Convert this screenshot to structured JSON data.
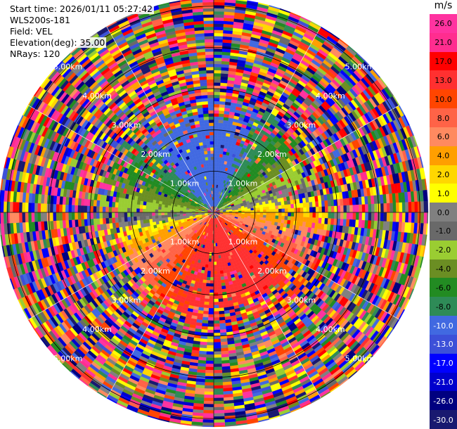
{
  "info": {
    "start_time": "Start time: 2026/01/11 05:27:42",
    "instrument": "WLS200s-181",
    "field": "Field: VEL",
    "elevation": "Elevation(deg): 35.00",
    "nrays": "NRays: 120"
  },
  "colorbar": {
    "unit": "m/s",
    "ticks": [
      "26.0",
      "21.0",
      "17.0",
      "13.0",
      "10.0",
      "8.0",
      "6.0",
      "4.0",
      "2.0",
      "1.0",
      "0.0",
      "-1.0",
      "-2.0",
      "-4.0",
      "-6.0",
      "-8.0",
      "-10.0",
      "-13.0",
      "-17.0",
      "-21.0",
      "-26.0",
      "-30.0"
    ],
    "colors": [
      "#ff33a0",
      "#ff2d8f",
      "#ff0000",
      "#ff3030",
      "#ff4500",
      "#ff6347",
      "#ff8a60",
      "#ff9f00",
      "#ffd700",
      "#ffff00",
      "#808080",
      "#696969",
      "#9acd32",
      "#6b8e23",
      "#228b22",
      "#2e8b57",
      "#4169e1",
      "#3c50d8",
      "#0000ff",
      "#0000cd",
      "#000080",
      "#191970"
    ]
  },
  "chart_data": {
    "type": "heatmap",
    "projection": "polar (PPI)",
    "field": "VEL",
    "units": "m/s",
    "nrays": 120,
    "range_rings_km": [
      1.0,
      2.0,
      3.0,
      4.0,
      5.0
    ],
    "ring_labels": [
      "1.00km",
      "2.00km",
      "3.00km",
      "4.00km",
      "5.00km"
    ],
    "color_scale_min": -30.0,
    "color_scale_max": 26.0,
    "pattern": {
      "near_field_km": [
        0.0,
        2.3
      ],
      "north_sector": "negative velocities (blue)",
      "south_sector": "positive velocities (red/orange)",
      "east_sector": "near zero / slightly positive (yellow, grey)",
      "west_sector": "mixed yellow and green",
      "far_field": "noise (random colors) beyond ~2.5 km"
    }
  }
}
